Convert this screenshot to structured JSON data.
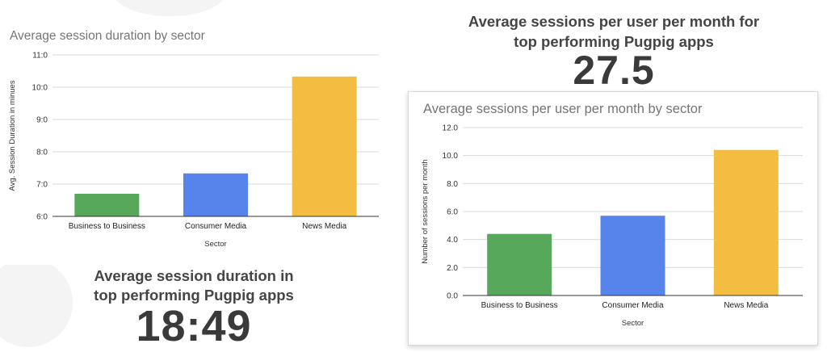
{
  "headlines": {
    "right": {
      "text_line1": "Average sessions per user per month for",
      "text_line2": "top performing Pugpig apps",
      "value": "27.5"
    },
    "left": {
      "text_line1": "Average session duration in",
      "text_line2": "top performing Pugpig apps",
      "value": "18:49"
    }
  },
  "colors": {
    "business_to_business": "#57a85a",
    "consumer_media": "#5784ea",
    "news_media": "#f2bd41"
  },
  "chart_data": [
    {
      "type": "bar",
      "title": "Average session duration by sector",
      "xlabel": "Sector",
      "ylabel": "Avg. Session Duration in minues",
      "categories": [
        "Business to Business",
        "Consumer Media",
        "News Media"
      ],
      "values": [
        6.7,
        7.33,
        10.33
      ],
      "ylim": [
        6,
        11
      ],
      "yticks": [
        "6:0",
        "7:0",
        "8:0",
        "9:0",
        "10:0",
        "11:0"
      ],
      "grid": true,
      "legend": "none"
    },
    {
      "type": "bar",
      "title": "Average sessions per user per month by sector",
      "xlabel": "Sector",
      "ylabel": "Number of sessions per month",
      "categories": [
        "Business to Business",
        "Consumer Media",
        "News Media"
      ],
      "values": [
        4.4,
        5.7,
        10.4
      ],
      "ylim": [
        0,
        12
      ],
      "yticks": [
        "0.0",
        "2.0",
        "4.0",
        "6.0",
        "8.0",
        "10.0",
        "12.0"
      ],
      "grid": true,
      "legend": "none"
    }
  ]
}
